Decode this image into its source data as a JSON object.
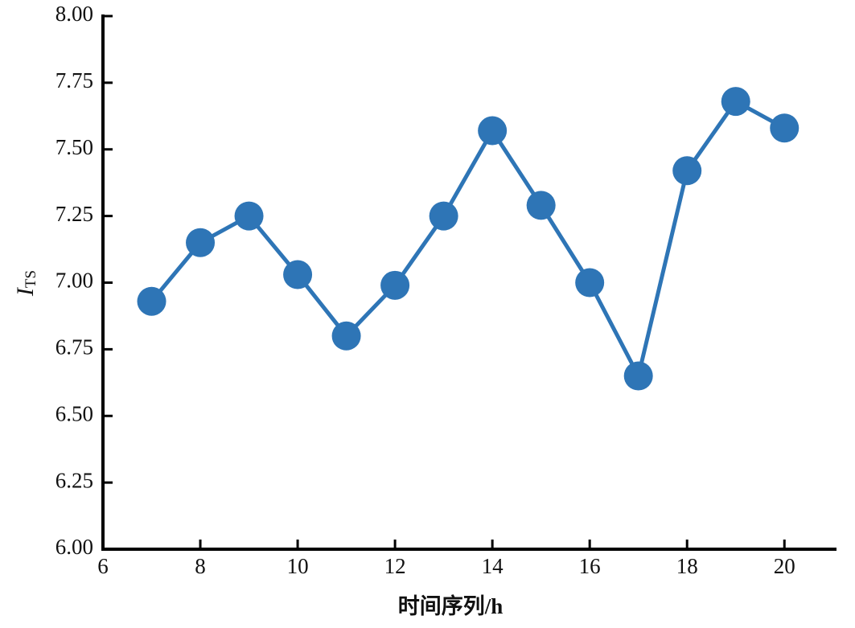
{
  "chart_data": {
    "type": "line",
    "xlabel": "时间序列/h",
    "ylabel": "I",
    "ylabel_sub": "TS",
    "x": [
      7,
      8,
      9,
      10,
      11,
      12,
      13,
      14,
      15,
      16,
      17,
      18,
      19,
      20
    ],
    "values": [
      6.93,
      7.15,
      7.25,
      7.03,
      6.8,
      6.99,
      7.25,
      7.57,
      7.29,
      7.0,
      6.65,
      7.42,
      7.68,
      7.58
    ],
    "color": "#2e75b6",
    "xlim": [
      6,
      21.07
    ],
    "xticks": [
      6,
      8,
      10,
      12,
      14,
      16,
      18,
      20
    ],
    "ylim": [
      6,
      8
    ],
    "yticks": [
      {
        "value": 6,
        "label": "6.00"
      },
      {
        "value": 6.25,
        "label": "6.25"
      },
      {
        "value": 6.5,
        "label": "6.50"
      },
      {
        "value": 6.75,
        "label": "6.75"
      },
      {
        "value": 7,
        "label": "7.00"
      },
      {
        "value": 7.25,
        "label": "7.25"
      },
      {
        "value": 7.5,
        "label": "7.50"
      },
      {
        "value": 7.75,
        "label": "7.75"
      },
      {
        "value": 8,
        "label": "8.00"
      }
    ],
    "grid": false
  }
}
